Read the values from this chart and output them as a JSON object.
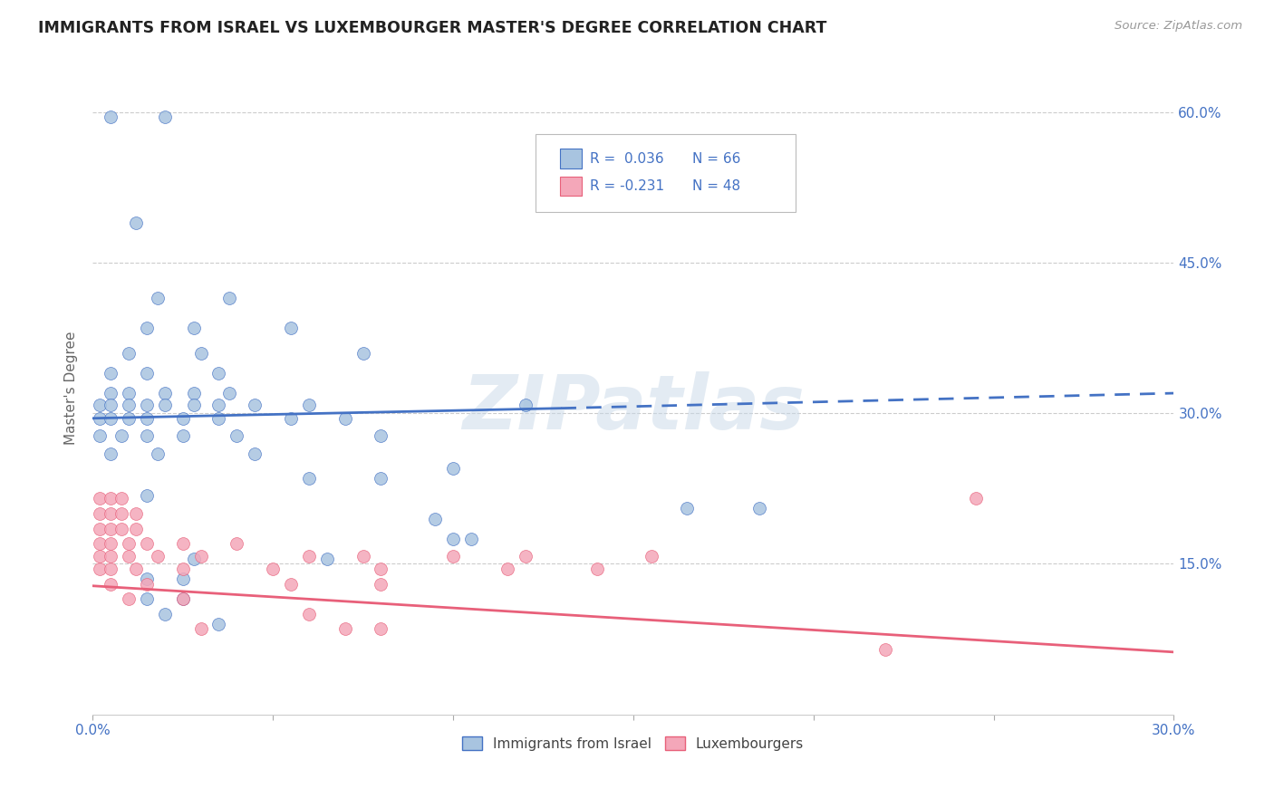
{
  "title": "IMMIGRANTS FROM ISRAEL VS LUXEMBOURGER MASTER'S DEGREE CORRELATION CHART",
  "source": "Source: ZipAtlas.com",
  "ylabel": "Master's Degree",
  "watermark": "ZIPatlas",
  "xlim": [
    0.0,
    0.3
  ],
  "ylim": [
    0.0,
    0.65
  ],
  "xtick_values": [
    0.0,
    0.05,
    0.1,
    0.15,
    0.2,
    0.25,
    0.3
  ],
  "xtick_labels_show": [
    "0.0%",
    "",
    "",
    "",
    "",
    "",
    "30.0%"
  ],
  "ytick_values": [
    0.15,
    0.3,
    0.45,
    0.6
  ],
  "ytick_labels": [
    "15.0%",
    "30.0%",
    "45.0%",
    "60.0%"
  ],
  "legend_labels": [
    "Immigrants from Israel",
    "Luxembourgers"
  ],
  "blue_color": "#a8c4e0",
  "pink_color": "#f4a7b9",
  "blue_line_color": "#4472c4",
  "pink_line_color": "#e8607a",
  "legend_text_color": "#4472c4",
  "blue_scatter": [
    [
      0.005,
      0.595
    ],
    [
      0.02,
      0.595
    ],
    [
      0.012,
      0.49
    ],
    [
      0.018,
      0.415
    ],
    [
      0.038,
      0.415
    ],
    [
      0.015,
      0.385
    ],
    [
      0.028,
      0.385
    ],
    [
      0.055,
      0.385
    ],
    [
      0.01,
      0.36
    ],
    [
      0.03,
      0.36
    ],
    [
      0.075,
      0.36
    ],
    [
      0.005,
      0.34
    ],
    [
      0.015,
      0.34
    ],
    [
      0.035,
      0.34
    ],
    [
      0.005,
      0.32
    ],
    [
      0.01,
      0.32
    ],
    [
      0.02,
      0.32
    ],
    [
      0.028,
      0.32
    ],
    [
      0.038,
      0.32
    ],
    [
      0.002,
      0.308
    ],
    [
      0.005,
      0.308
    ],
    [
      0.01,
      0.308
    ],
    [
      0.015,
      0.308
    ],
    [
      0.02,
      0.308
    ],
    [
      0.028,
      0.308
    ],
    [
      0.035,
      0.308
    ],
    [
      0.045,
      0.308
    ],
    [
      0.06,
      0.308
    ],
    [
      0.12,
      0.308
    ],
    [
      0.002,
      0.295
    ],
    [
      0.005,
      0.295
    ],
    [
      0.01,
      0.295
    ],
    [
      0.015,
      0.295
    ],
    [
      0.025,
      0.295
    ],
    [
      0.035,
      0.295
    ],
    [
      0.055,
      0.295
    ],
    [
      0.07,
      0.295
    ],
    [
      0.002,
      0.278
    ],
    [
      0.008,
      0.278
    ],
    [
      0.015,
      0.278
    ],
    [
      0.025,
      0.278
    ],
    [
      0.04,
      0.278
    ],
    [
      0.08,
      0.278
    ],
    [
      0.005,
      0.26
    ],
    [
      0.018,
      0.26
    ],
    [
      0.045,
      0.26
    ],
    [
      0.1,
      0.245
    ],
    [
      0.06,
      0.235
    ],
    [
      0.08,
      0.235
    ],
    [
      0.015,
      0.218
    ],
    [
      0.165,
      0.205
    ],
    [
      0.185,
      0.205
    ],
    [
      0.095,
      0.195
    ],
    [
      0.1,
      0.175
    ],
    [
      0.105,
      0.175
    ],
    [
      0.028,
      0.155
    ],
    [
      0.065,
      0.155
    ],
    [
      0.015,
      0.135
    ],
    [
      0.025,
      0.135
    ],
    [
      0.015,
      0.115
    ],
    [
      0.025,
      0.115
    ],
    [
      0.02,
      0.1
    ],
    [
      0.035,
      0.09
    ]
  ],
  "pink_scatter": [
    [
      0.002,
      0.215
    ],
    [
      0.005,
      0.215
    ],
    [
      0.008,
      0.215
    ],
    [
      0.002,
      0.2
    ],
    [
      0.005,
      0.2
    ],
    [
      0.008,
      0.2
    ],
    [
      0.012,
      0.2
    ],
    [
      0.002,
      0.185
    ],
    [
      0.005,
      0.185
    ],
    [
      0.008,
      0.185
    ],
    [
      0.012,
      0.185
    ],
    [
      0.002,
      0.17
    ],
    [
      0.005,
      0.17
    ],
    [
      0.01,
      0.17
    ],
    [
      0.015,
      0.17
    ],
    [
      0.025,
      0.17
    ],
    [
      0.04,
      0.17
    ],
    [
      0.002,
      0.158
    ],
    [
      0.005,
      0.158
    ],
    [
      0.01,
      0.158
    ],
    [
      0.018,
      0.158
    ],
    [
      0.03,
      0.158
    ],
    [
      0.06,
      0.158
    ],
    [
      0.075,
      0.158
    ],
    [
      0.1,
      0.158
    ],
    [
      0.12,
      0.158
    ],
    [
      0.155,
      0.158
    ],
    [
      0.002,
      0.145
    ],
    [
      0.005,
      0.145
    ],
    [
      0.012,
      0.145
    ],
    [
      0.025,
      0.145
    ],
    [
      0.05,
      0.145
    ],
    [
      0.08,
      0.145
    ],
    [
      0.115,
      0.145
    ],
    [
      0.14,
      0.145
    ],
    [
      0.005,
      0.13
    ],
    [
      0.015,
      0.13
    ],
    [
      0.055,
      0.13
    ],
    [
      0.08,
      0.13
    ],
    [
      0.01,
      0.115
    ],
    [
      0.025,
      0.115
    ],
    [
      0.06,
      0.1
    ],
    [
      0.03,
      0.085
    ],
    [
      0.07,
      0.085
    ],
    [
      0.08,
      0.085
    ],
    [
      0.245,
      0.215
    ],
    [
      0.22,
      0.065
    ]
  ],
  "blue_trendline_solid": [
    [
      0.0,
      0.295
    ],
    [
      0.13,
      0.305
    ]
  ],
  "blue_trendline_dashed": [
    [
      0.13,
      0.305
    ],
    [
      0.3,
      0.32
    ]
  ],
  "pink_trendline": [
    [
      0.0,
      0.128
    ],
    [
      0.3,
      0.062
    ]
  ]
}
